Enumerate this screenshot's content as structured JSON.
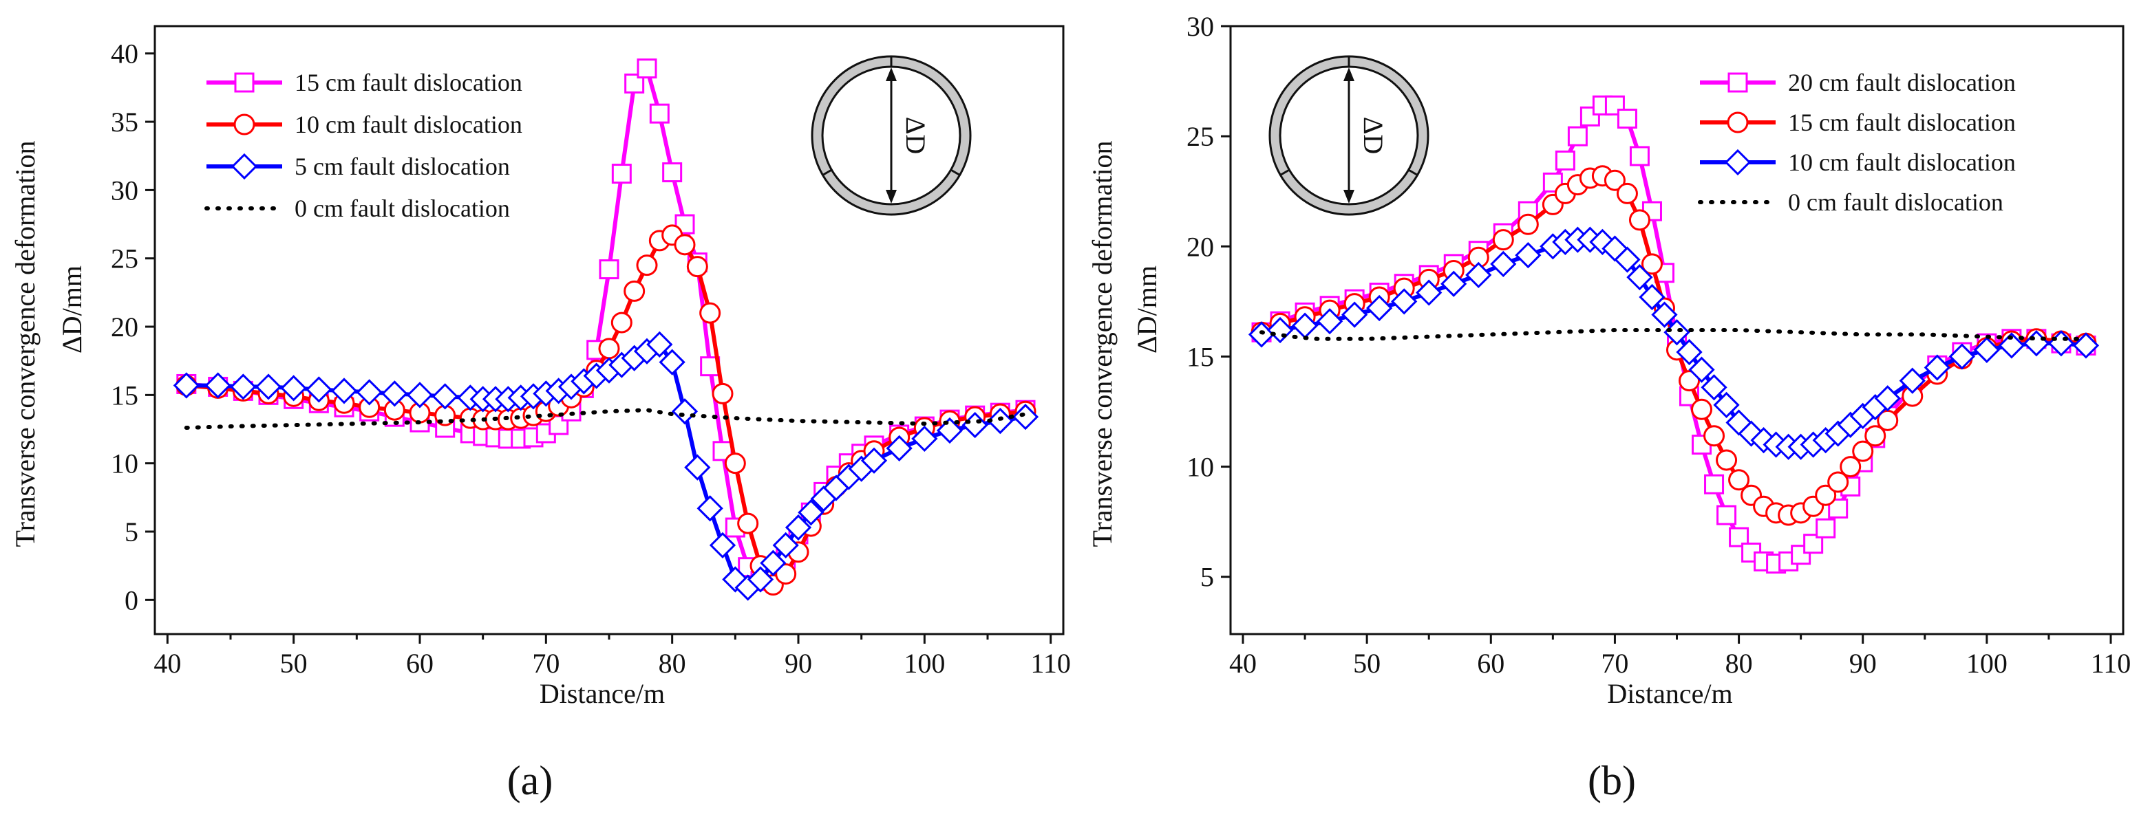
{
  "colors": {
    "magenta": "#ff00ff",
    "red": "#ff0000",
    "blue": "#0000ff",
    "black": "#000000",
    "axis": "#111111",
    "ring": "#c8c8c8"
  },
  "chart_data": [
    {
      "type": "line",
      "panel_label": "(a)",
      "xlabel": "Distance/m",
      "ylabel": "Transverse convergence deformation",
      "ylabel_unit": "ΔD/mm",
      "xlim": [
        39,
        111
      ],
      "ylim": [
        -2.5,
        42
      ],
      "xticks": [
        40,
        50,
        60,
        70,
        80,
        90,
        100,
        110
      ],
      "yticks": [
        0,
        5,
        10,
        15,
        20,
        25,
        30,
        35,
        40
      ],
      "legend_position": "top-left",
      "inset_icon": {
        "label": "ΔD",
        "position": "top-right"
      },
      "series": [
        {
          "name": "15 cm fault dislocation",
          "color": "#ff00ff",
          "marker": "square",
          "x": [
            41.5,
            44,
            46,
            48,
            50,
            52,
            54,
            56,
            58,
            60,
            62,
            64,
            65,
            66,
            67,
            68,
            69,
            70,
            71,
            72,
            73,
            74,
            75,
            76,
            77,
            78,
            79,
            80,
            81,
            82,
            83,
            84,
            85,
            86,
            87,
            88,
            89,
            90,
            91,
            92,
            93,
            94,
            95,
            96,
            98,
            100,
            102,
            104,
            106,
            108
          ],
          "y": [
            15.8,
            15.6,
            15.3,
            15.0,
            14.7,
            14.4,
            14.1,
            13.8,
            13.4,
            13.0,
            12.6,
            12.2,
            12.0,
            11.9,
            11.8,
            11.8,
            11.9,
            12.2,
            12.8,
            13.8,
            15.5,
            18.3,
            24.2,
            31.2,
            37.8,
            38.9,
            35.6,
            31.3,
            27.5,
            24.7,
            17.1,
            10.9,
            5.3,
            2.4,
            1.4,
            1.8,
            3.0,
            4.8,
            6.4,
            7.9,
            9.1,
            10.0,
            10.7,
            11.3,
            12.1,
            12.7,
            13.2,
            13.5,
            13.7,
            13.9
          ]
        },
        {
          "name": "10 cm fault dislocation",
          "color": "#ff0000",
          "marker": "circle",
          "x": [
            41.5,
            44,
            46,
            48,
            50,
            52,
            54,
            56,
            58,
            60,
            62,
            64,
            65,
            66,
            67,
            68,
            69,
            70,
            71,
            72,
            73,
            74,
            75,
            76,
            77,
            78,
            79,
            80,
            81,
            82,
            83,
            84,
            85,
            86,
            87,
            88,
            89,
            90,
            91,
            92,
            93,
            94,
            95,
            96,
            98,
            100,
            102,
            104,
            106,
            108
          ],
          "y": [
            15.7,
            15.5,
            15.3,
            15.1,
            14.9,
            14.6,
            14.4,
            14.1,
            13.9,
            13.7,
            13.5,
            13.3,
            13.2,
            13.2,
            13.2,
            13.3,
            13.5,
            13.8,
            14.2,
            14.8,
            15.6,
            16.8,
            18.4,
            20.3,
            22.6,
            24.5,
            26.3,
            26.7,
            26.0,
            24.4,
            21.0,
            15.1,
            10.0,
            5.6,
            2.5,
            1.1,
            1.9,
            3.5,
            5.4,
            7.0,
            8.3,
            9.3,
            10.2,
            10.9,
            11.9,
            12.6,
            13.1,
            13.4,
            13.6,
            13.8
          ]
        },
        {
          "name": "5 cm fault dislocation",
          "color": "#0000ff",
          "marker": "diamond",
          "x": [
            41.5,
            44,
            46,
            48,
            50,
            52,
            54,
            56,
            58,
            60,
            62,
            64,
            65,
            66,
            67,
            68,
            69,
            70,
            71,
            72,
            73,
            74,
            75,
            76,
            77,
            78,
            79,
            80,
            81,
            82,
            83,
            84,
            85,
            86,
            87,
            88,
            89,
            90,
            91,
            92,
            93,
            94,
            95,
            96,
            98,
            100,
            102,
            104,
            106,
            108
          ],
          "y": [
            15.7,
            15.7,
            15.6,
            15.6,
            15.5,
            15.4,
            15.3,
            15.2,
            15.1,
            15.0,
            14.9,
            14.8,
            14.7,
            14.7,
            14.7,
            14.8,
            14.9,
            15.1,
            15.3,
            15.6,
            16.0,
            16.4,
            16.8,
            17.2,
            17.7,
            18.2,
            18.7,
            17.4,
            13.8,
            9.7,
            6.7,
            4.0,
            1.5,
            0.9,
            1.5,
            2.7,
            4.0,
            5.3,
            6.4,
            7.4,
            8.2,
            9.0,
            9.6,
            10.2,
            11.1,
            11.8,
            12.4,
            12.8,
            13.1,
            13.4
          ]
        },
        {
          "name": "0 cm fault dislocation",
          "color": "#000000",
          "marker": "dotted",
          "x": [
            41.5,
            45,
            50,
            55,
            60,
            65,
            70,
            75,
            78,
            80,
            85,
            90,
            95,
            100,
            105,
            108
          ],
          "y": [
            12.6,
            12.7,
            12.8,
            12.9,
            13.0,
            13.2,
            13.5,
            13.8,
            13.9,
            13.6,
            13.3,
            13.1,
            13.0,
            12.9,
            13.1,
            13.6
          ]
        }
      ]
    },
    {
      "type": "line",
      "panel_label": "(b)",
      "xlabel": "Distance/m",
      "ylabel": "Transverse convergence deformation",
      "ylabel_unit": "ΔD/mm",
      "xlim": [
        39,
        111
      ],
      "ylim": [
        2.4,
        30
      ],
      "xticks": [
        40,
        50,
        60,
        70,
        80,
        90,
        100,
        110
      ],
      "yticks": [
        5,
        10,
        15,
        20,
        25,
        30
      ],
      "legend_position": "top-right",
      "inset_icon": {
        "label": "ΔD",
        "position": "top-left"
      },
      "series": [
        {
          "name": "20 cm fault dislocation",
          "color": "#ff00ff",
          "marker": "square",
          "x": [
            41.5,
            43,
            45,
            47,
            49,
            51,
            53,
            55,
            57,
            59,
            61,
            63,
            65,
            66,
            67,
            68,
            69,
            70,
            71,
            72,
            73,
            74,
            75,
            76,
            77,
            78,
            79,
            80,
            81,
            82,
            83,
            84,
            85,
            86,
            87,
            88,
            89,
            90,
            91,
            92,
            94,
            96,
            98,
            100,
            102,
            104,
            106,
            108
          ],
          "y": [
            16.1,
            16.6,
            17.0,
            17.3,
            17.6,
            17.9,
            18.3,
            18.7,
            19.2,
            19.8,
            20.6,
            21.6,
            22.9,
            23.9,
            25.0,
            25.9,
            26.4,
            26.4,
            25.8,
            24.1,
            21.6,
            18.8,
            15.8,
            13.2,
            11.0,
            9.2,
            7.8,
            6.8,
            6.1,
            5.7,
            5.6,
            5.7,
            6.0,
            6.5,
            7.2,
            8.1,
            9.1,
            10.2,
            11.3,
            12.3,
            13.6,
            14.6,
            15.2,
            15.6,
            15.8,
            15.8,
            15.6,
            15.5
          ]
        },
        {
          "name": "15 cm fault dislocation",
          "color": "#ff0000",
          "marker": "circle",
          "x": [
            41.5,
            43,
            45,
            47,
            49,
            51,
            53,
            55,
            57,
            59,
            61,
            63,
            65,
            66,
            67,
            68,
            69,
            70,
            71,
            72,
            73,
            74,
            75,
            76,
            77,
            78,
            79,
            80,
            81,
            82,
            83,
            84,
            85,
            86,
            87,
            88,
            89,
            90,
            91,
            92,
            94,
            96,
            98,
            100,
            102,
            104,
            106,
            108
          ],
          "y": [
            16.1,
            16.5,
            16.8,
            17.1,
            17.4,
            17.7,
            18.1,
            18.5,
            18.9,
            19.5,
            20.3,
            21.0,
            21.9,
            22.4,
            22.8,
            23.1,
            23.2,
            23.0,
            22.4,
            21.2,
            19.2,
            17.2,
            15.3,
            13.9,
            12.6,
            11.4,
            10.3,
            9.4,
            8.7,
            8.2,
            7.9,
            7.8,
            7.9,
            8.2,
            8.7,
            9.3,
            10.0,
            10.7,
            11.4,
            12.1,
            13.2,
            14.2,
            14.9,
            15.4,
            15.7,
            15.8,
            15.7,
            15.6
          ]
        },
        {
          "name": "10 cm fault dislocation",
          "color": "#0000ff",
          "marker": "diamond",
          "x": [
            41.5,
            43,
            45,
            47,
            49,
            51,
            53,
            55,
            57,
            59,
            61,
            63,
            65,
            66,
            67,
            68,
            69,
            70,
            71,
            72,
            73,
            74,
            75,
            76,
            77,
            78,
            79,
            80,
            81,
            82,
            83,
            84,
            85,
            86,
            87,
            88,
            89,
            90,
            91,
            92,
            94,
            96,
            98,
            100,
            102,
            104,
            106,
            108
          ],
          "y": [
            16.0,
            16.2,
            16.4,
            16.6,
            16.9,
            17.2,
            17.5,
            17.9,
            18.3,
            18.7,
            19.2,
            19.6,
            20.0,
            20.2,
            20.3,
            20.3,
            20.2,
            19.9,
            19.4,
            18.6,
            17.7,
            16.9,
            16.1,
            15.2,
            14.4,
            13.6,
            12.8,
            12.0,
            11.5,
            11.2,
            11.0,
            10.9,
            10.9,
            11.0,
            11.2,
            11.5,
            11.9,
            12.3,
            12.7,
            13.1,
            13.9,
            14.5,
            15.0,
            15.3,
            15.5,
            15.6,
            15.6,
            15.5
          ]
        },
        {
          "name": "0 cm fault dislocation",
          "color": "#000000",
          "marker": "dotted",
          "x": [
            41.5,
            44,
            46,
            48,
            50,
            55,
            60,
            65,
            70,
            75,
            80,
            85,
            90,
            95,
            100,
            105,
            108
          ],
          "y": [
            16.1,
            15.9,
            15.8,
            15.8,
            15.8,
            15.9,
            16.0,
            16.1,
            16.2,
            16.2,
            16.2,
            16.1,
            16.0,
            16.0,
            15.9,
            15.8,
            15.8
          ]
        }
      ]
    }
  ]
}
